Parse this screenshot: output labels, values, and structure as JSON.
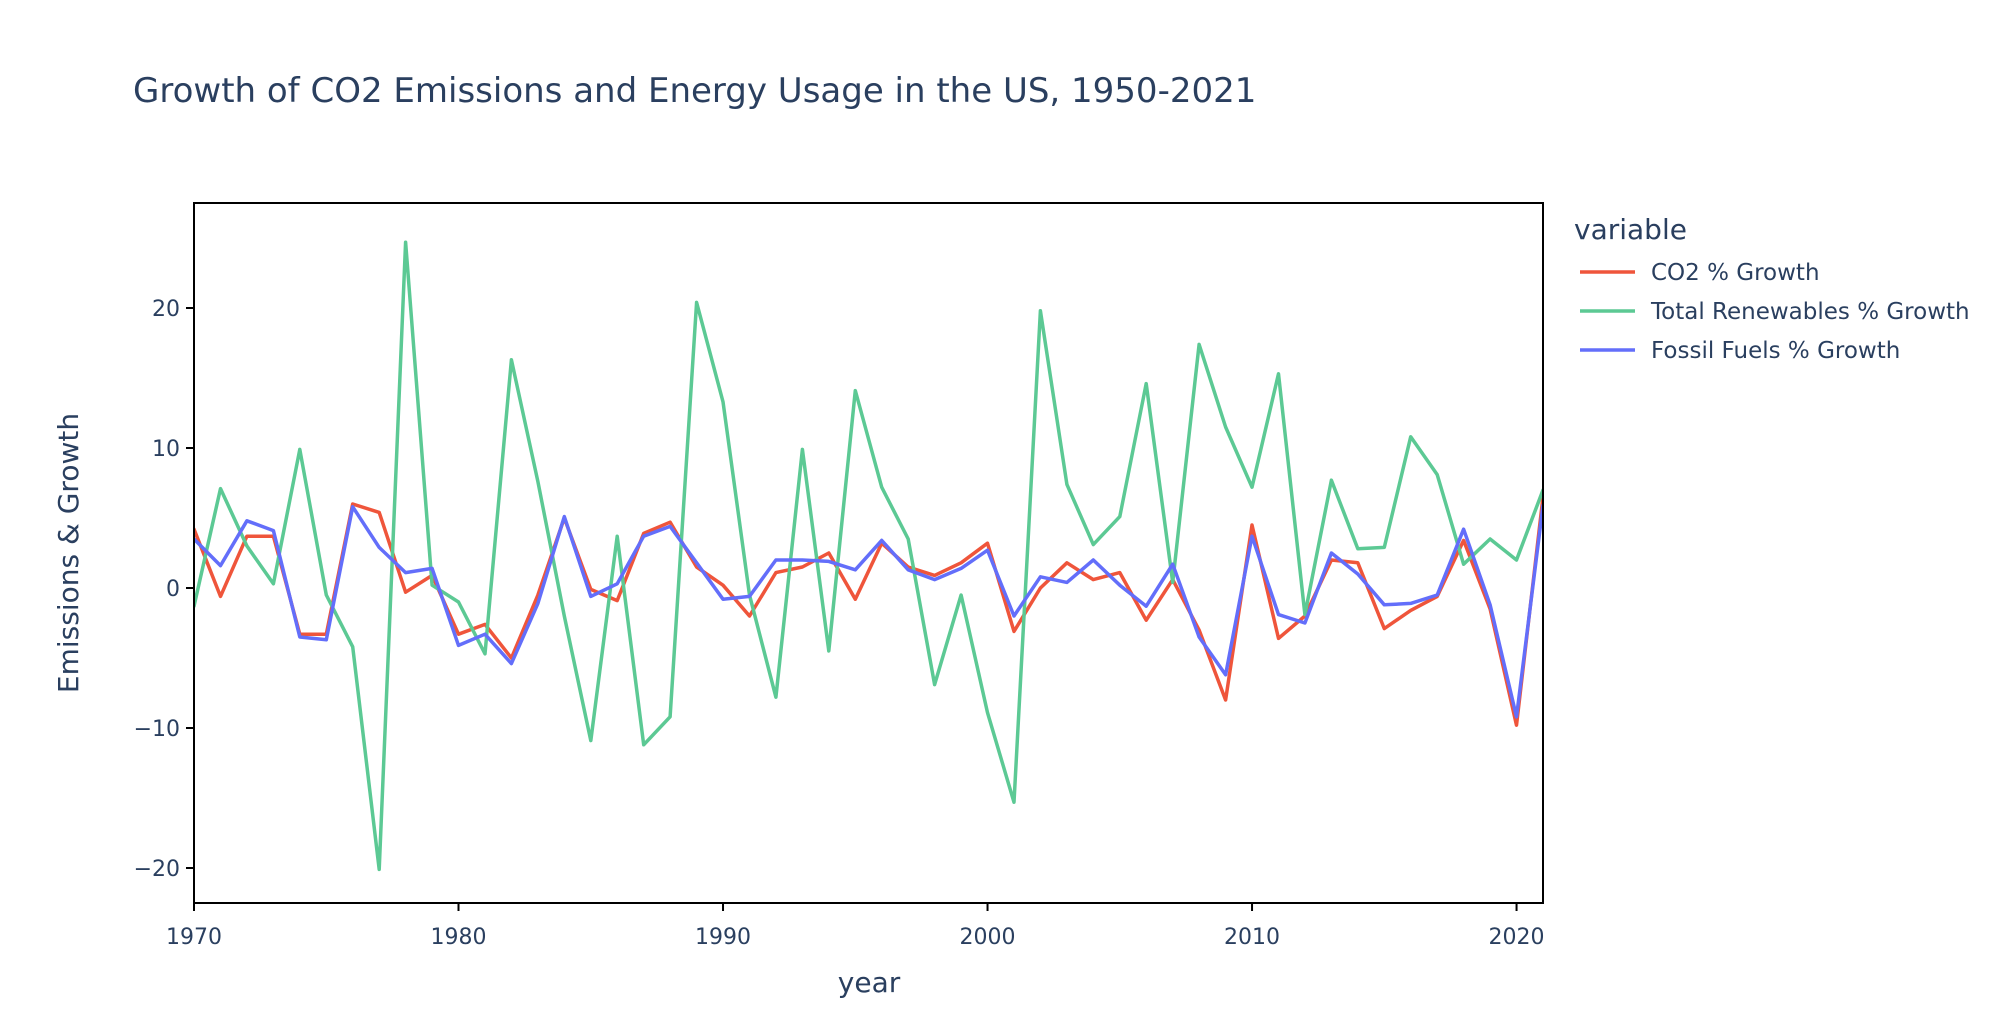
{
  "chart_data": {
    "type": "line",
    "title": "Growth of CO2 Emissions and Energy Usage in the US, 1950-2021",
    "xlabel": "year",
    "ylabel": "Emissions & Growth",
    "xlim": [
      1970,
      2021
    ],
    "ylim": [
      -22.5,
      27.5
    ],
    "xticks": [
      1970,
      1980,
      1990,
      2000,
      2010,
      2020
    ],
    "yticks": [
      -20,
      -10,
      0,
      10,
      20
    ],
    "ytick_labels": [
      "−20",
      "−10",
      "0",
      "10",
      "20"
    ],
    "grid": false,
    "legend": {
      "title": "variable",
      "position": "right"
    },
    "x": [
      1970,
      1971,
      1972,
      1973,
      1974,
      1975,
      1976,
      1977,
      1978,
      1979,
      1980,
      1981,
      1982,
      1983,
      1984,
      1985,
      1986,
      1987,
      1988,
      1989,
      1990,
      1991,
      1992,
      1993,
      1994,
      1995,
      1996,
      1997,
      1998,
      1999,
      2000,
      2001,
      2002,
      2003,
      2004,
      2005,
      2006,
      2007,
      2008,
      2009,
      2010,
      2011,
      2012,
      2013,
      2014,
      2015,
      2016,
      2017,
      2018,
      2019,
      2020,
      2021
    ],
    "series": [
      {
        "name": "CO2 % Growth",
        "color": "#ef553b",
        "values": [
          4.2,
          -0.6,
          3.7,
          3.7,
          -3.3,
          -3.3,
          6.0,
          5.4,
          -0.3,
          0.9,
          -3.3,
          -2.6,
          -5.0,
          -0.5,
          5.0,
          -0.1,
          -0.9,
          3.9,
          4.7,
          1.5,
          0.2,
          -2.0,
          1.1,
          1.5,
          2.5,
          -0.8,
          3.2,
          1.5,
          0.9,
          1.8,
          3.2,
          -3.1,
          0.0,
          1.8,
          0.6,
          1.1,
          -2.3,
          0.6,
          -3.0,
          -8.0,
          4.5,
          -3.6,
          -2.0,
          2.0,
          1.8,
          -2.9,
          -1.6,
          -0.6,
          3.4,
          -1.5,
          -9.8,
          6.5
        ]
      },
      {
        "name": "Total Renewables % Growth",
        "color": "#5cc994",
        "values": [
          -1.3,
          7.1,
          3.0,
          0.3,
          9.9,
          -0.5,
          -4.2,
          -20.1,
          24.7,
          0.2,
          -1.0,
          -4.7,
          16.3,
          7.6,
          -2.0,
          -10.9,
          3.7,
          -11.2,
          -9.2,
          20.4,
          13.3,
          -0.5,
          -7.8,
          9.9,
          -4.5,
          14.1,
          7.2,
          3.5,
          -6.9,
          -0.5,
          -8.9,
          -15.3,
          19.8,
          7.4,
          3.1,
          5.1,
          14.6,
          0.4,
          17.4,
          11.5,
          7.2,
          15.3,
          -1.9,
          7.7,
          2.8,
          2.9,
          10.8,
          8.1,
          1.7,
          3.5,
          2.0,
          7.0
        ]
      },
      {
        "name": "Fossil Fuels % Growth",
        "color": "#636efa",
        "values": [
          3.5,
          1.6,
          4.8,
          4.1,
          -3.5,
          -3.7,
          5.8,
          2.9,
          1.1,
          1.4,
          -4.1,
          -3.3,
          -5.4,
          -1.1,
          5.1,
          -0.6,
          0.3,
          3.7,
          4.4,
          1.8,
          -0.8,
          -0.6,
          2.0,
          2.0,
          1.9,
          1.3,
          3.4,
          1.3,
          0.6,
          1.4,
          2.7,
          -2.0,
          0.8,
          0.4,
          2.0,
          0.2,
          -1.3,
          1.7,
          -3.5,
          -6.2,
          3.7,
          -1.9,
          -2.5,
          2.5,
          1.0,
          -1.2,
          -1.1,
          -0.5,
          4.2,
          -1.2,
          -9.2,
          5.9
        ]
      }
    ]
  }
}
